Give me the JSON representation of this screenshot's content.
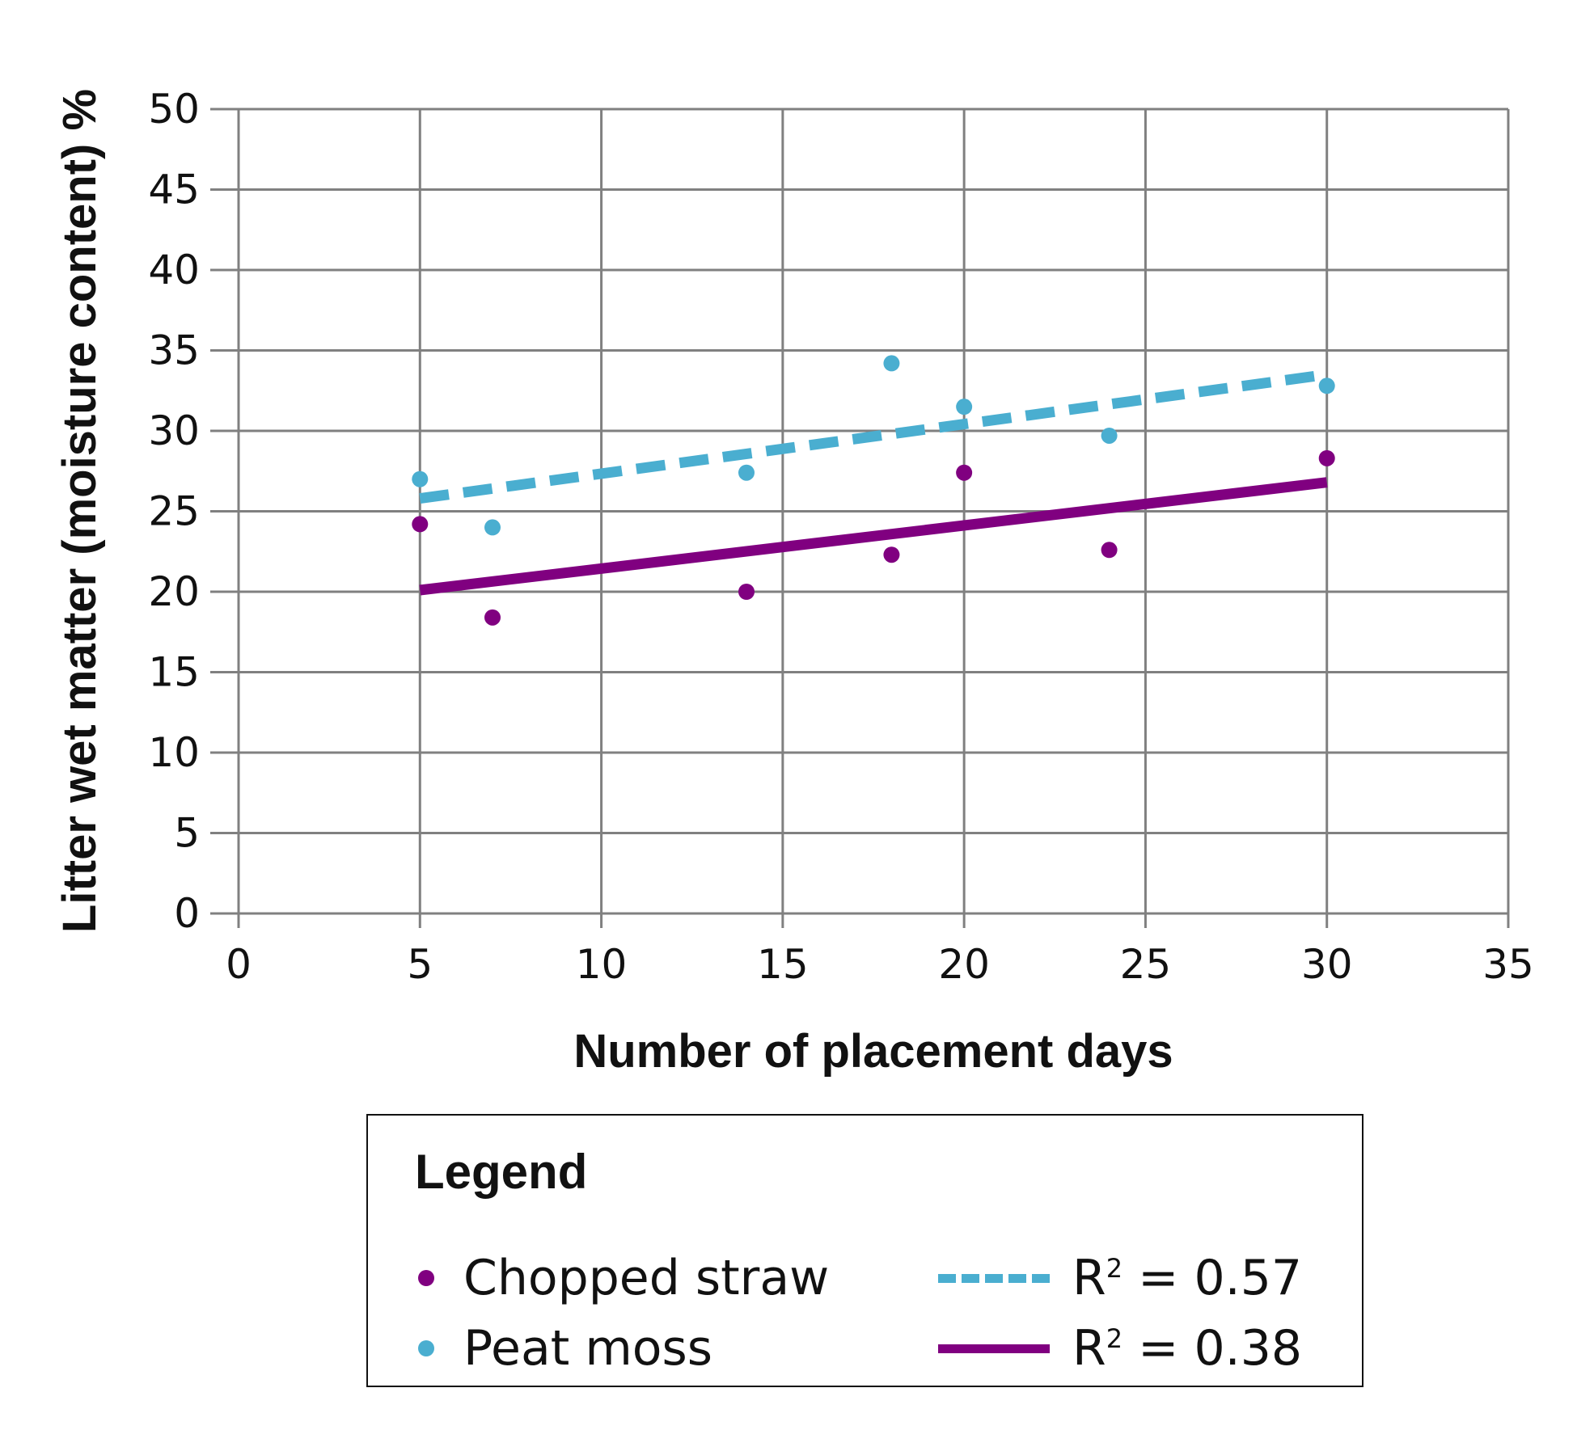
{
  "chart_data": {
    "type": "scatter",
    "title": "",
    "xlabel": "Number of placement days",
    "ylabel": "Litter wet matter (moisture content) %",
    "xlim": [
      0,
      35
    ],
    "ylim": [
      0,
      50
    ],
    "x_ticks": [
      "0",
      "5",
      "10",
      "15",
      "20",
      "25",
      "30",
      "35"
    ],
    "y_ticks": [
      "0",
      "5",
      "10",
      "15",
      "20",
      "25",
      "30",
      "35",
      "40",
      "45",
      "50"
    ],
    "grid": true,
    "legend_position": "bottom",
    "series": [
      {
        "name": "Chopped straw",
        "color": "#800080",
        "points": [
          {
            "x": 5,
            "y": 24.2
          },
          {
            "x": 7,
            "y": 18.4
          },
          {
            "x": 14,
            "y": 20.0
          },
          {
            "x": 18,
            "y": 22.3
          },
          {
            "x": 20,
            "y": 27.4
          },
          {
            "x": 24,
            "y": 22.6
          },
          {
            "x": 30,
            "y": 28.3
          }
        ]
      },
      {
        "name": "Peat moss",
        "color": "#4aaed0",
        "points": [
          {
            "x": 5,
            "y": 27.0
          },
          {
            "x": 7,
            "y": 24.0
          },
          {
            "x": 14,
            "y": 27.4
          },
          {
            "x": 18,
            "y": 34.2
          },
          {
            "x": 20,
            "y": 31.5
          },
          {
            "x": 24,
            "y": 29.7
          },
          {
            "x": 30,
            "y": 32.8
          }
        ]
      }
    ],
    "trendlines": [
      {
        "name": "R² = 0.57",
        "style": "dashed",
        "color": "#4aaed0",
        "x": [
          5,
          30
        ],
        "y": [
          25.8,
          33.5
        ]
      },
      {
        "name": "R² = 0.38",
        "style": "solid",
        "color": "#800080",
        "x": [
          5,
          30
        ],
        "y": [
          20.1,
          26.8
        ]
      }
    ]
  },
  "legend": {
    "title": "Legend",
    "chopped_straw": "Chopped straw",
    "peat_moss": "Peat moss",
    "r2_peat": "R",
    "r2_peat_sup": "2",
    "r2_peat_value": " = 0.57",
    "r2_straw": "R",
    "r2_straw_sup": "2",
    "r2_straw_value": " = 0.38"
  }
}
